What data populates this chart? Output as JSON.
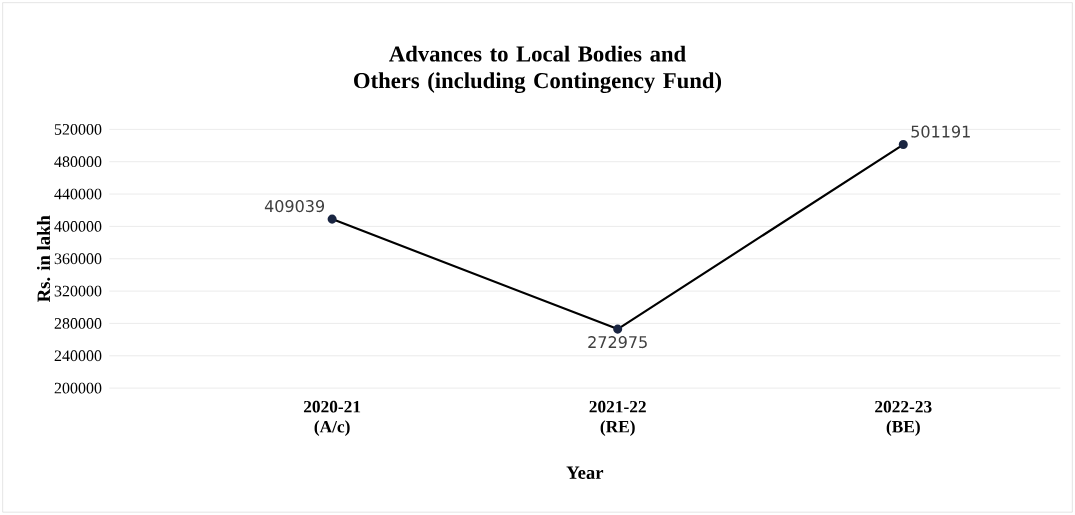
{
  "chart_data": {
    "type": "line",
    "title": "Advances to Local Bodies and Others (including  Contingency Fund)",
    "xlabel": "Year",
    "ylabel": "Rs. in lakh",
    "categories": [
      "2020-21 (A/c)",
      "2021-22 (RE)",
      "2022-23 (BE)"
    ],
    "values": [
      409039,
      272975,
      501191
    ],
    "color": "#000000",
    "marker": "circle",
    "line_style": "solid",
    "ylim": [
      200000,
      520000
    ],
    "yticks": [
      200000,
      240000,
      280000,
      320000,
      360000,
      400000,
      440000,
      480000,
      520000
    ],
    "grid": "y",
    "data_labels": true
  }
}
